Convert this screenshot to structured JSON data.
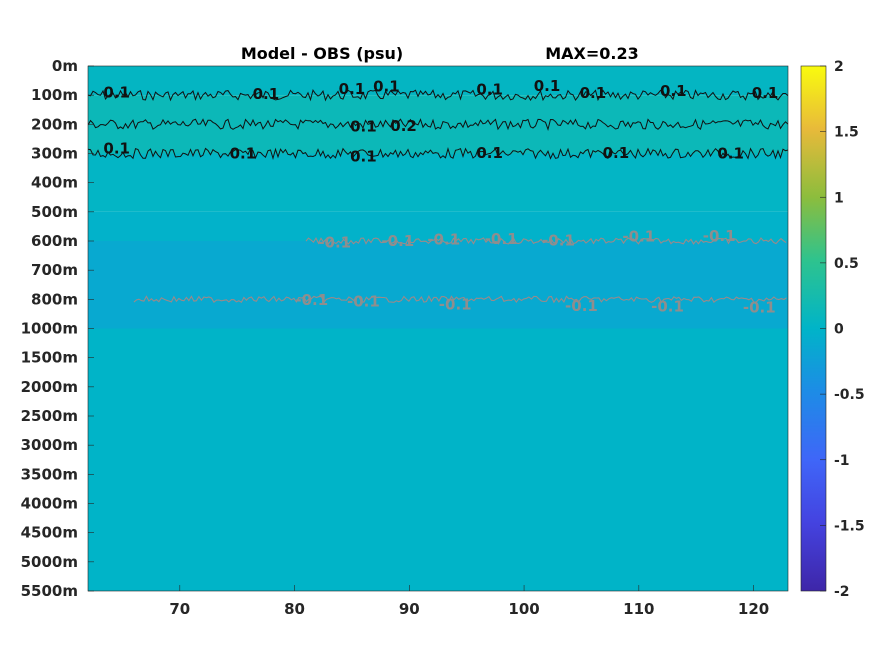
{
  "chart_data": {
    "type": "heatmap",
    "title": "Model - OBS (psu)",
    "max_label": "MAX=0.23",
    "x": {
      "ticks": [
        70,
        80,
        90,
        100,
        110,
        120
      ],
      "range": [
        62,
        123
      ]
    },
    "y": {
      "ticks": [
        "0m",
        "100m",
        "200m",
        "300m",
        "400m",
        "500m",
        "600m",
        "700m",
        "800m",
        "1000m",
        "1500m",
        "2000m",
        "2500m",
        "3000m",
        "3500m",
        "4000m",
        "4500m",
        "5000m",
        "5500m"
      ]
    },
    "colorbar": {
      "range": [
        -2,
        2
      ],
      "ticks": [
        "2",
        "1.5",
        "1",
        "0.5",
        "0",
        "-0.5",
        "-1",
        "-1.5",
        "-2"
      ]
    },
    "field_bands": [
      {
        "from": "0m",
        "to": "100m",
        "value": 0.05
      },
      {
        "from": "100m",
        "to": "300m",
        "value": 0.14
      },
      {
        "from": "300m",
        "to": "500m",
        "value": 0.03
      },
      {
        "from": "500m",
        "to": "600m",
        "value": -0.03
      },
      {
        "from": "600m",
        "to": "1000m",
        "value": -0.13
      },
      {
        "from": "1000m",
        "to": "5500m",
        "value": 0.0
      }
    ],
    "contours": [
      {
        "level": "0.1",
        "depth": "100m",
        "x_start": 62,
        "x_end": 123,
        "sign": "positive"
      },
      {
        "level": "0.2",
        "depth": "200m",
        "x_start": 62,
        "x_end": 123,
        "sign": "positive"
      },
      {
        "level": "0.1",
        "depth": "300m",
        "x_start": 62,
        "x_end": 123,
        "sign": "positive"
      },
      {
        "level": "-0.1",
        "depth": "600m",
        "x_start": 81,
        "x_end": 123,
        "sign": "negative"
      },
      {
        "level": "-0.1",
        "depth": "800m",
        "x_start": 66,
        "x_end": 123,
        "sign": "negative"
      }
    ],
    "contour_labels": [
      {
        "text": "0.1",
        "x": 64.5,
        "depth": 90,
        "sign": "positive"
      },
      {
        "text": "0.1",
        "x": 77.5,
        "depth": 96,
        "sign": "positive"
      },
      {
        "text": "0.1",
        "x": 85,
        "depth": 78,
        "sign": "positive"
      },
      {
        "text": "0.1",
        "x": 88,
        "depth": 70,
        "sign": "positive"
      },
      {
        "text": "0.1",
        "x": 97,
        "depth": 80,
        "sign": "positive"
      },
      {
        "text": "0.1",
        "x": 102,
        "depth": 68,
        "sign": "positive"
      },
      {
        "text": "0.1",
        "x": 106,
        "depth": 92,
        "sign": "positive"
      },
      {
        "text": "0.1",
        "x": 113,
        "depth": 85,
        "sign": "positive"
      },
      {
        "text": "0.1",
        "x": 121,
        "depth": 92,
        "sign": "positive"
      },
      {
        "text": "0.1",
        "x": 86,
        "depth": 208,
        "sign": "positive"
      },
      {
        "text": "0.2",
        "x": 89.5,
        "depth": 205,
        "sign": "positive"
      },
      {
        "text": "0.1",
        "x": 64.5,
        "depth": 283,
        "sign": "positive"
      },
      {
        "text": "0.1",
        "x": 75.5,
        "depth": 300,
        "sign": "positive"
      },
      {
        "text": "0.1",
        "x": 86,
        "depth": 310,
        "sign": "positive"
      },
      {
        "text": "0.1",
        "x": 97,
        "depth": 298,
        "sign": "positive"
      },
      {
        "text": "0.1",
        "x": 108,
        "depth": 298,
        "sign": "positive"
      },
      {
        "text": "0.1",
        "x": 118,
        "depth": 300,
        "sign": "positive"
      },
      {
        "text": "-0.1",
        "x": 83.5,
        "depth": 605,
        "sign": "negative"
      },
      {
        "text": "-0.1",
        "x": 89,
        "depth": 600,
        "sign": "negative"
      },
      {
        "text": "-0.1",
        "x": 93,
        "depth": 595,
        "sign": "negative"
      },
      {
        "text": "-0.1",
        "x": 98,
        "depth": 593,
        "sign": "negative"
      },
      {
        "text": "-0.1",
        "x": 103,
        "depth": 598,
        "sign": "negative"
      },
      {
        "text": "-0.1",
        "x": 110,
        "depth": 585,
        "sign": "negative"
      },
      {
        "text": "-0.1",
        "x": 117,
        "depth": 582,
        "sign": "negative"
      },
      {
        "text": "-0.1",
        "x": 81.5,
        "depth": 805,
        "sign": "negative"
      },
      {
        "text": "-0.1",
        "x": 86,
        "depth": 815,
        "sign": "negative"
      },
      {
        "text": "-0.1",
        "x": 94,
        "depth": 835,
        "sign": "negative"
      },
      {
        "text": "-0.1",
        "x": 105,
        "depth": 845,
        "sign": "negative"
      },
      {
        "text": "-0.1",
        "x": 112.5,
        "depth": 850,
        "sign": "negative"
      },
      {
        "text": "-0.1",
        "x": 120.5,
        "depth": 855,
        "sign": "negative"
      }
    ]
  }
}
